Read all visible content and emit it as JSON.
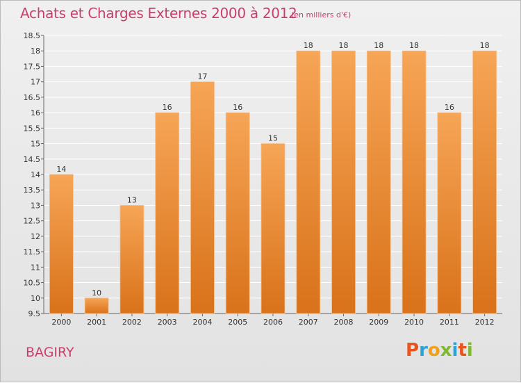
{
  "header": {
    "title": "Achats et Charges Externes 2000 à 2012",
    "subtitle": "(en milliers d'€)"
  },
  "footer": {
    "place": "BAGIRY",
    "logo_text": "Proxiti",
    "logo_colors": [
      "#e8541e",
      "#2aa3dd",
      "#f0a019",
      "#7fb92f",
      "#2aa3dd",
      "#e8541e",
      "#7fb92f"
    ]
  },
  "colors": {
    "bar_top": "#f6a556",
    "bar_bottom": "#d9721a",
    "title": "#c8406a",
    "grid": "#ffffff"
  },
  "chart_data": {
    "type": "bar",
    "title": "Achats et Charges Externes 2000 à 2012",
    "subtitle": "(en milliers d'€)",
    "categories": [
      "2000",
      "2001",
      "2002",
      "2003",
      "2004",
      "2005",
      "2006",
      "2007",
      "2008",
      "2009",
      "2010",
      "2011",
      "2012"
    ],
    "values": [
      14,
      10,
      13,
      16,
      17,
      16,
      15,
      18,
      18,
      18,
      18,
      16,
      18
    ],
    "data_labels": [
      "14",
      "10",
      "13",
      "16",
      "17",
      "16",
      "15",
      "18",
      "18",
      "18",
      "18",
      "16",
      "18"
    ],
    "ylim": [
      9.5,
      18.5
    ],
    "yticks": [
      9.5,
      10,
      10.5,
      11,
      11.5,
      12,
      12.5,
      13,
      13.5,
      14,
      14.5,
      15,
      15.5,
      16,
      16.5,
      17,
      17.5,
      18,
      18.5
    ],
    "ytick_labels": [
      "9.5",
      "10",
      "10.5",
      "11",
      "11.5",
      "12",
      "12.5",
      "13",
      "13.5",
      "14",
      "14.5",
      "15",
      "15.5",
      "16",
      "16.5",
      "17",
      "17.5",
      "18",
      "18.5"
    ],
    "xlabel": "",
    "ylabel": "",
    "grid": true,
    "legend": "none"
  }
}
